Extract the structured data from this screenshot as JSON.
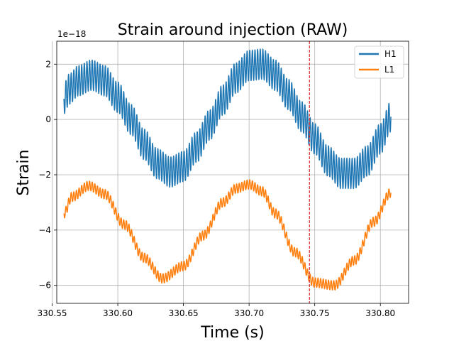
{
  "chart_data": {
    "type": "line",
    "title": "Strain around injection (RAW)",
    "xlabel": "Time (s)",
    "ylabel": "Strain",
    "y_offset_label": "1e−18",
    "xlim": [
      330.5535,
      330.8215
    ],
    "ylim": [
      -6.65,
      2.83
    ],
    "xticks": [
      330.55,
      330.6,
      330.65,
      330.7,
      330.75,
      330.8
    ],
    "xtick_labels": [
      "330.55",
      "330.60",
      "330.65",
      "330.70",
      "330.75",
      "330.80"
    ],
    "yticks": [
      2,
      0,
      -2,
      -4,
      -6
    ],
    "ytick_labels": [
      "2",
      "0",
      "−2",
      "−4",
      "−6"
    ],
    "grid": true,
    "legend_position": "top-right",
    "injection_time": 330.746,
    "injection_line_color": "#d62728",
    "series": [
      {
        "name": "H1",
        "color": "#1f77b4",
        "osc_amplitude": 0.55,
        "osc_frequency_hz": 500,
        "x_range": [
          330.559,
          330.808
        ],
        "envelope_center": {
          "x": [
            330.559,
            330.563,
            330.57,
            330.58,
            330.59,
            330.6,
            330.61,
            330.62,
            330.63,
            330.64,
            330.65,
            330.66,
            330.67,
            330.68,
            330.69,
            330.7,
            330.71,
            330.72,
            330.73,
            330.74,
            330.75,
            330.76,
            330.77,
            330.78,
            330.79,
            330.8,
            330.808
          ],
          "y": [
            0.75,
            1.1,
            1.4,
            1.6,
            1.4,
            0.8,
            0.0,
            -0.9,
            -1.6,
            -1.9,
            -1.7,
            -1.0,
            -0.2,
            0.7,
            1.5,
            1.95,
            2.0,
            1.6,
            0.9,
            0.1,
            -0.7,
            -1.5,
            -1.95,
            -1.95,
            -1.5,
            -0.7,
            0.1
          ]
        }
      },
      {
        "name": "L1",
        "color": "#ff7f0e",
        "osc_amplitude": 0.17,
        "osc_frequency_hz": 500,
        "x_range": [
          330.559,
          330.808
        ],
        "envelope_center": {
          "x": [
            330.559,
            330.565,
            330.578,
            330.59,
            330.605,
            330.62,
            330.634,
            330.65,
            330.665,
            330.68,
            330.69,
            330.7,
            330.71,
            330.72,
            330.735,
            330.75,
            330.765,
            330.78,
            330.795,
            330.808
          ],
          "y": [
            -3.4,
            -2.8,
            -2.4,
            -2.7,
            -3.8,
            -5.0,
            -5.75,
            -5.3,
            -4.2,
            -3.0,
            -2.5,
            -2.35,
            -2.6,
            -3.4,
            -4.8,
            -5.9,
            -6.0,
            -5.1,
            -3.7,
            -2.65
          ]
        }
      }
    ]
  }
}
